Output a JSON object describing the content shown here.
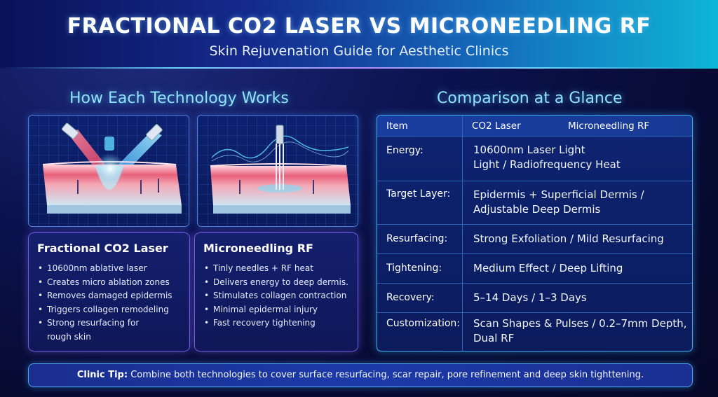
{
  "header": {
    "title": "FRACTIONAL CO2 LASER VS MICRONEEDLING RF",
    "subtitle": "Skin Rejuvenation Guide for Aesthetic Clinics"
  },
  "left_section": {
    "title": "How Each Technology Works",
    "cards": [
      {
        "title": "Fractional CO2 Laser",
        "bullets": [
          "10600nm ablative laser",
          "Creates micro ablation zones",
          "Removes damaged epidermis",
          "Triggers collagen remodeling",
          "Strong resurfacing for rough skin"
        ]
      },
      {
        "title": "Microneedling RF",
        "bullets": [
          "Tinly needles + RF heat",
          "Delivers energy to deep dermis.",
          "Stimulates collagen contraction",
          "Minimal epidermal injury",
          "Fast recovery tightening"
        ]
      }
    ]
  },
  "right_section": {
    "title": "Comparison at a Glance",
    "table": {
      "headers": [
        "Item",
        "CO2 Laser",
        "Microneedling RF"
      ],
      "rows": [
        {
          "label": "Energy:",
          "line1": "10600nm Laser Light",
          "line2": "Light / Radiofrequency Heat"
        },
        {
          "label": "Target Layer:",
          "line1": "Epidermis + Superficial Dermis /",
          "line2": "Adjustable Deep Dermis"
        },
        {
          "label": "Resurfacing:",
          "line1": "Strong Exfoliation / Mild Resurfacing",
          "line2": ""
        },
        {
          "label": "Tightening:",
          "line1": "Medium Effect / Deep Lifting",
          "line2": ""
        },
        {
          "label": "Recovery:",
          "line1": "5–14 Days / 1–3 Days",
          "line2": ""
        },
        {
          "label": "Customization:",
          "line1": "Scan Shapes & Pulses / 0.2–7mm Depth,",
          "line2": "Dual RF"
        }
      ]
    }
  },
  "footer": {
    "tip_label": "Clinic Tip:",
    "tip_text": " Combine both technologies to cover surface resurfacing, scar repair, pore refinement and deep skin tighttening."
  },
  "colors": {
    "accent_cyan": "#8fe3ff",
    "card_border": "#6e5fe0",
    "table_border": "#3fb0ee",
    "laser_red": "#ff4d6d",
    "laser_blue": "#3fc4ff"
  }
}
